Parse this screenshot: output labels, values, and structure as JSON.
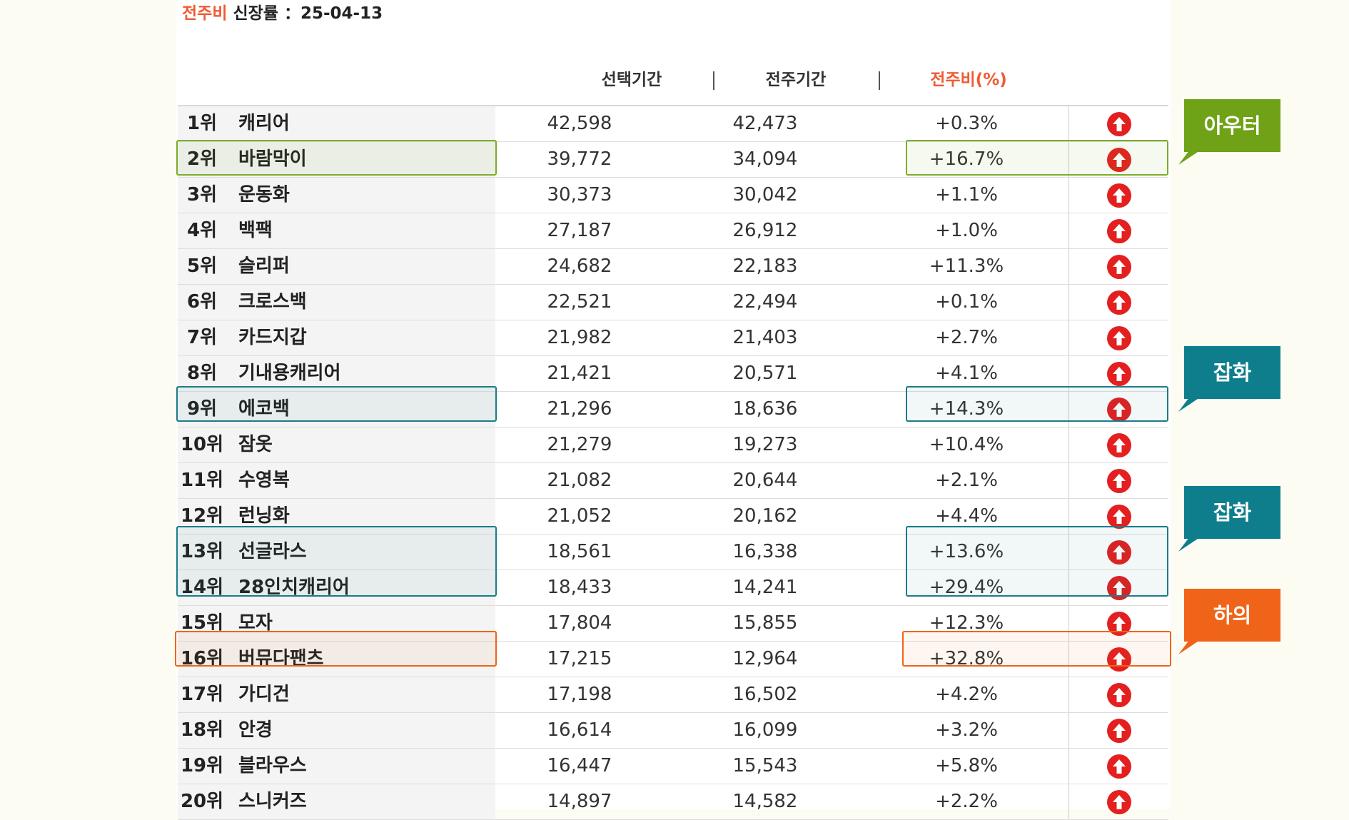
{
  "title": {
    "accent": "전주비",
    "text": " 신장률 ：25-04-13"
  },
  "headers": {
    "selected": "선택기간",
    "prev": "전주기간",
    "ratio": "전주비(%)"
  },
  "colors": {
    "accent": "#ef5a32",
    "green": "#6fa217",
    "teal": "#0f7e8c",
    "orange": "#ef6418",
    "up_icon": "#e31f1f"
  },
  "row_icon": "up-arrow-circle-icon",
  "rows": [
    {
      "rank": "1위",
      "name": "캐리어",
      "selected": "42,598",
      "prev": "42,473",
      "ratio": "+0.3%"
    },
    {
      "rank": "2위",
      "name": "바람막이",
      "selected": "39,772",
      "prev": "34,094",
      "ratio": "+16.7%"
    },
    {
      "rank": "3위",
      "name": "운동화",
      "selected": "30,373",
      "prev": "30,042",
      "ratio": "+1.1%"
    },
    {
      "rank": "4위",
      "name": "백팩",
      "selected": "27,187",
      "prev": "26,912",
      "ratio": "+1.0%"
    },
    {
      "rank": "5위",
      "name": "슬리퍼",
      "selected": "24,682",
      "prev": "22,183",
      "ratio": "+11.3%"
    },
    {
      "rank": "6위",
      "name": "크로스백",
      "selected": "22,521",
      "prev": "22,494",
      "ratio": "+0.1%"
    },
    {
      "rank": "7위",
      "name": "카드지갑",
      "selected": "21,982",
      "prev": "21,403",
      "ratio": "+2.7%"
    },
    {
      "rank": "8위",
      "name": "기내용캐리어",
      "selected": "21,421",
      "prev": "20,571",
      "ratio": "+4.1%"
    },
    {
      "rank": "9위",
      "name": "에코백",
      "selected": "21,296",
      "prev": "18,636",
      "ratio": "+14.3%"
    },
    {
      "rank": "10위",
      "name": "잠옷",
      "selected": "21,279",
      "prev": "19,273",
      "ratio": "+10.4%"
    },
    {
      "rank": "11위",
      "name": "수영복",
      "selected": "21,082",
      "prev": "20,644",
      "ratio": "+2.1%"
    },
    {
      "rank": "12위",
      "name": "런닝화",
      "selected": "21,052",
      "prev": "20,162",
      "ratio": "+4.4%"
    },
    {
      "rank": "13위",
      "name": "선글라스",
      "selected": "18,561",
      "prev": "16,338",
      "ratio": "+13.6%"
    },
    {
      "rank": "14위",
      "name": "28인치캐리어",
      "selected": "18,433",
      "prev": "14,241",
      "ratio": "+29.4%"
    },
    {
      "rank": "15위",
      "name": "모자",
      "selected": "17,804",
      "prev": "15,855",
      "ratio": "+12.3%"
    },
    {
      "rank": "16위",
      "name": "버뮤다팬츠",
      "selected": "17,215",
      "prev": "12,964",
      "ratio": "+32.8%"
    },
    {
      "rank": "17위",
      "name": "가디건",
      "selected": "17,198",
      "prev": "16,502",
      "ratio": "+4.2%"
    },
    {
      "rank": "18위",
      "name": "안경",
      "selected": "16,614",
      "prev": "16,099",
      "ratio": "+3.2%"
    },
    {
      "rank": "19위",
      "name": "블라우스",
      "selected": "16,447",
      "prev": "15,543",
      "ratio": "+5.8%"
    },
    {
      "rank": "20위",
      "name": "스니커즈",
      "selected": "14,897",
      "prev": "14,582",
      "ratio": "+2.2%"
    }
  ],
  "badges": [
    {
      "label": "아우터",
      "color": "#6fa217"
    },
    {
      "label": "잡화",
      "color": "#0f7e8c"
    },
    {
      "label": "잡화",
      "color": "#0f7e8c"
    },
    {
      "label": "하의",
      "color": "#ef6418"
    }
  ]
}
